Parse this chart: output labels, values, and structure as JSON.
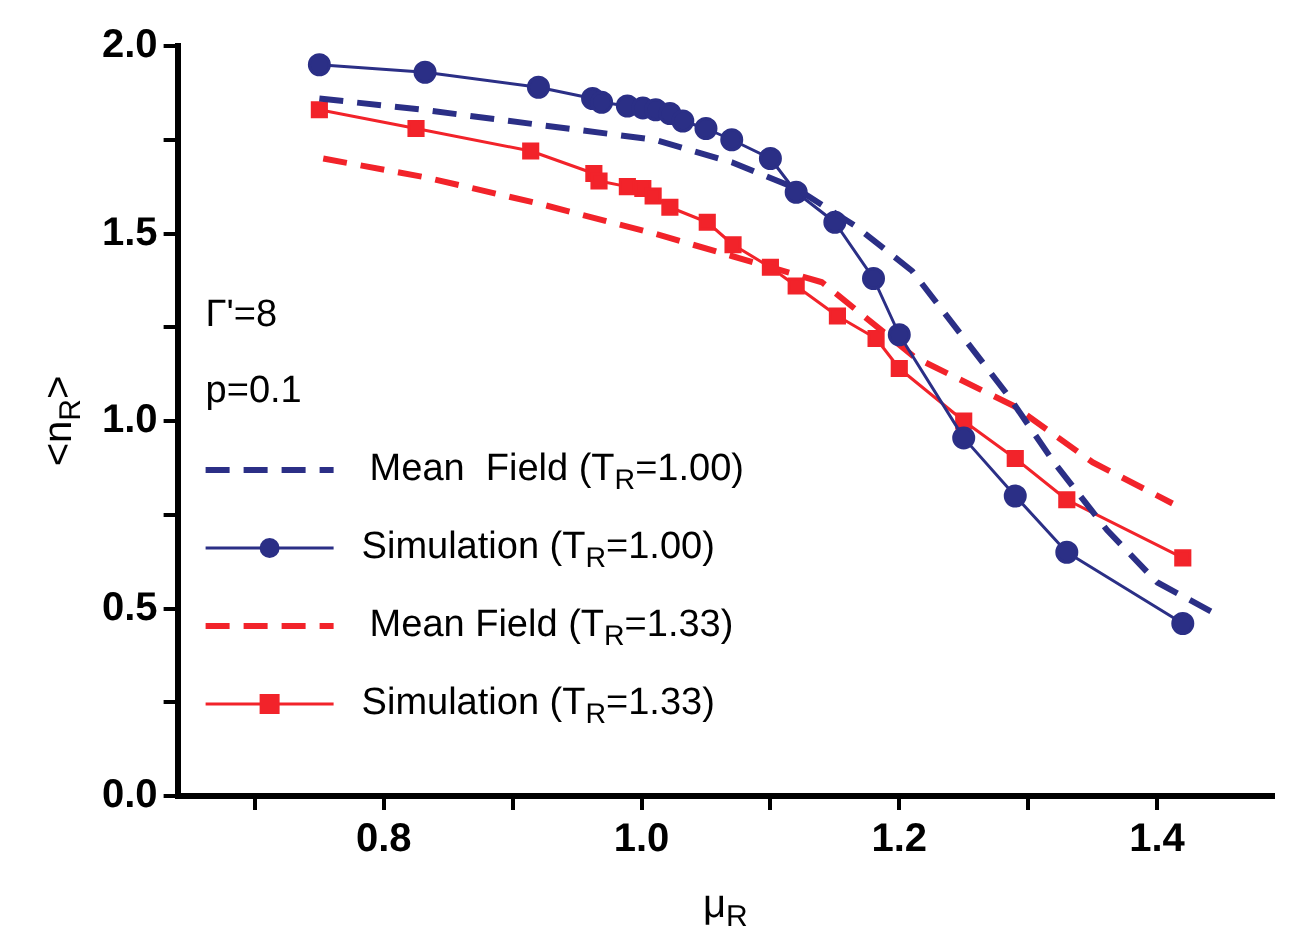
{
  "chart_data": {
    "type": "line",
    "xlabel": "μ$_{R}$",
    "ylabel": "<n$_{R}$>",
    "xlim": [
      0.64,
      1.49
    ],
    "ylim": [
      0,
      2
    ],
    "xticks": [
      {
        "value": 0.7,
        "label": null
      },
      {
        "value": 0.8,
        "label": "0.8"
      },
      {
        "value": 0.9,
        "label": null
      },
      {
        "value": 1.0,
        "label": "1.0"
      },
      {
        "value": 1.1,
        "label": null
      },
      {
        "value": 1.2,
        "label": "1.2"
      },
      {
        "value": 1.3,
        "label": null
      },
      {
        "value": 1.4,
        "label": "1.4"
      }
    ],
    "yticks": [
      {
        "value": 0,
        "label": "0.0"
      },
      {
        "value": 0.25,
        "label": null
      },
      {
        "value": 0.5,
        "label": "0.5"
      },
      {
        "value": 0.75,
        "label": null
      },
      {
        "value": 1.0,
        "label": "1.0"
      },
      {
        "value": 1.25,
        "label": null
      },
      {
        "value": 1.5,
        "label": "1.5"
      },
      {
        "value": 1.75,
        "label": null
      },
      {
        "value": 2.0,
        "label": "2.0"
      }
    ],
    "grid": false,
    "legend": "left",
    "annotations": [
      "Γ'=8",
      "p=0.1"
    ],
    "series": [
      {
        "name": "Mean  Field (T$_{R}$=1.00)",
        "color": "#2b2f86",
        "line_style": "dashed",
        "marker": "none",
        "x": [
          0.75,
          0.83,
          0.92,
          1.01,
          1.07,
          1.12,
          1.166,
          1.21,
          1.284,
          1.32,
          1.361,
          1.4,
          1.443
        ],
        "values": [
          1.86,
          1.83,
          1.79,
          1.75,
          1.69,
          1.62,
          1.52,
          1.4,
          1.07,
          0.89,
          0.71,
          0.57,
          0.49
        ]
      },
      {
        "name": "Simulation (T$_{R}$=1.00)",
        "color": "#2b2f86",
        "line_style": "solid",
        "marker": "circle",
        "x": [
          0.75,
          0.832,
          0.92,
          0.962,
          0.969,
          0.989,
          1.001,
          1.011,
          1.022,
          1.032,
          1.05,
          1.07,
          1.1,
          1.12,
          1.15,
          1.18,
          1.2,
          1.25,
          1.29,
          1.33,
          1.42
        ],
        "values": [
          1.95,
          1.93,
          1.89,
          1.86,
          1.85,
          1.84,
          1.835,
          1.83,
          1.82,
          1.8,
          1.78,
          1.75,
          1.7,
          1.61,
          1.53,
          1.38,
          1.23,
          0.955,
          0.8,
          0.65,
          0.46
        ]
      },
      {
        "name": "Mean Field (T$_{R}$=1.33)",
        "color": "#f2232a",
        "line_style": "dashed",
        "marker": "none",
        "x": [
          0.753,
          0.832,
          0.92,
          1.01,
          1.07,
          1.14,
          1.212,
          1.289,
          1.35,
          1.412
        ],
        "values": [
          1.7,
          1.65,
          1.58,
          1.5,
          1.44,
          1.37,
          1.17,
          1.04,
          0.89,
          0.78
        ]
      },
      {
        "name": "Simulation (T$_{R}$=1.33)",
        "color": "#f2232a",
        "line_style": "solid",
        "marker": "square",
        "x": [
          0.75,
          0.825,
          0.914,
          0.963,
          0.967,
          0.989,
          1.001,
          1.009,
          1.022,
          1.051,
          1.071,
          1.1,
          1.12,
          1.152,
          1.182,
          1.2,
          1.25,
          1.29,
          1.33,
          1.42
        ],
        "values": [
          1.83,
          1.78,
          1.72,
          1.66,
          1.64,
          1.625,
          1.62,
          1.6,
          1.57,
          1.53,
          1.47,
          1.41,
          1.36,
          1.28,
          1.22,
          1.14,
          1.0,
          0.9,
          0.79,
          0.635
        ]
      }
    ]
  }
}
